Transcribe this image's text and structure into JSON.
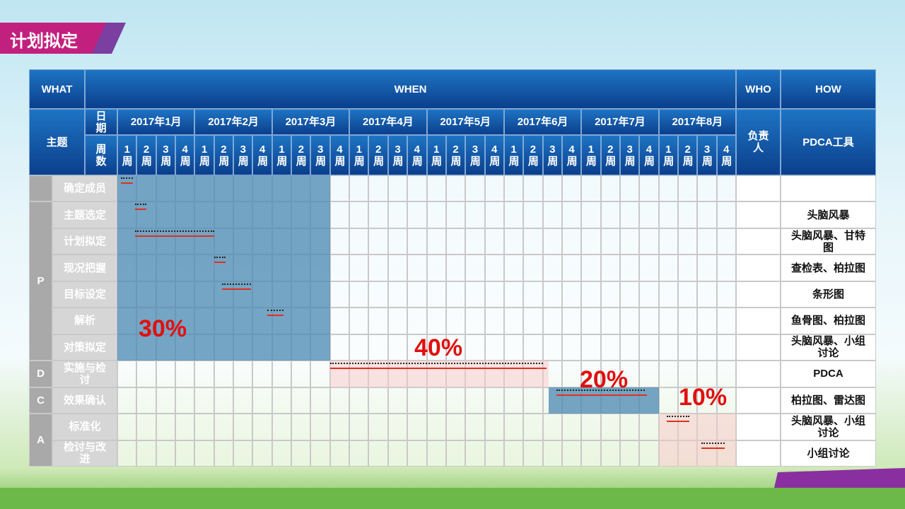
{
  "slide_title": "计划拟定",
  "header": {
    "what": "WHAT",
    "when": "WHEN",
    "who": "WHO",
    "how": "HOW",
    "topic": "主题",
    "date": "日期",
    "week": "周数",
    "owner": "负责人",
    "tool": "PDCA工具"
  },
  "months": [
    "2017年1月",
    "2017年2月",
    "2017年3月",
    "2017年4月",
    "2017年5月",
    "2017年6月",
    "2017年7月",
    "2017年8月"
  ],
  "weeks": [
    "1周",
    "2周",
    "3周",
    "4周"
  ],
  "groups": [
    {
      "steps": [
        {
          "step": "确定成员",
          "plan": [
            0.2,
            0.8
          ],
          "actual": [
            0.2,
            0.8
          ]
        }
      ]
    },
    {
      "phase": "P",
      "steps": [
        {
          "step": "主题选定",
          "tool": "头脑风暴",
          "plan": [
            0.9,
            1.5
          ],
          "actual": [
            0.9,
            1.5
          ]
        },
        {
          "step": "计划拟定",
          "tool": "头脑风暴、甘特图",
          "plan": [
            0.9,
            5
          ],
          "actual": [
            0.9,
            5
          ]
        },
        {
          "step": "现况把握",
          "tool": "查检表、柏拉图",
          "plan": [
            5,
            5.6
          ],
          "actual": [
            5,
            5.6
          ]
        },
        {
          "step": "目标设定",
          "tool": "条形图",
          "plan": [
            5.4,
            6.9
          ],
          "actual": [
            5.4,
            6.9
          ]
        },
        {
          "step": "解析",
          "tool": "鱼骨图、柏拉图",
          "plan": [
            7.75,
            8.6
          ],
          "actual": [
            7.75,
            8.6
          ]
        },
        {
          "step": "对策拟定",
          "tool": "头脑风暴、小组讨论"
        }
      ]
    },
    {
      "phase": "D",
      "steps": [
        {
          "step": "实施与检讨",
          "tool": "PDCA",
          "plan": [
            11,
            22
          ],
          "actual": [
            11,
            22.2
          ]
        }
      ]
    },
    {
      "phase": "C",
      "steps": [
        {
          "step": "效果确认",
          "tool": "柏拉图、雷达图",
          "plan": [
            22.7,
            27.3
          ],
          "actual": [
            22.7,
            27.4
          ]
        }
      ]
    },
    {
      "phase": "A",
      "steps": [
        {
          "step": "标准化",
          "tool": "头脑风暴、小组讨论",
          "plan": [
            28.4,
            29.6
          ],
          "actual": [
            28.4,
            29.6
          ]
        },
        {
          "step": "检讨与改进",
          "tool": "小组讨论",
          "plan": [
            30.2,
            31.4
          ],
          "actual": [
            30.2,
            31.4
          ]
        }
      ]
    }
  ],
  "phase_shares": [
    "30%",
    "40%",
    "20%",
    "10%"
  ]
}
